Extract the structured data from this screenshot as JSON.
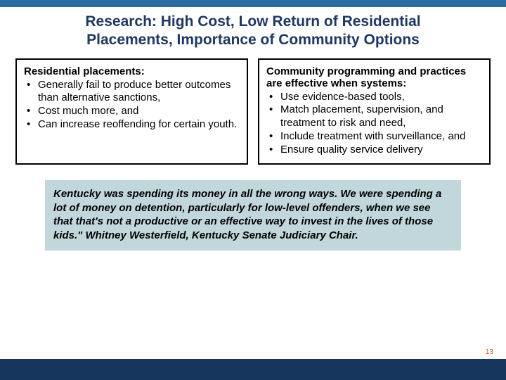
{
  "colors": {
    "top_bar": "#2b6ca3",
    "title_text": "#1f3763",
    "quote_bg": "#c2d7dc",
    "bottom_bar": "#17365d",
    "page_num": "#c05a2c",
    "body_text": "#000000"
  },
  "title": {
    "text": "Research: High Cost, Low Return of Residential Placements, Importance of Community Options",
    "fontsize": 21
  },
  "left_box": {
    "heading": "Residential placements:",
    "fontsize": 15,
    "items": [
      "Generally fail to produce better outcomes than alternative sanctions,",
      "Cost much more, and",
      "Can increase reoffending for certain youth."
    ]
  },
  "right_box": {
    "heading": "Community programming and practices are effective when systems:",
    "fontsize": 15,
    "items": [
      "Use evidence-based tools,",
      "Match placement, supervision, and treatment to risk and need,",
      "Include treatment with surveillance, and",
      "Ensure quality service delivery"
    ]
  },
  "quote": {
    "text": "Kentucky was spending its money in all the wrong ways. We were spending a lot of money on detention, particularly for low-level offenders, when we see that that's not a productive or an effective way to invest in the lives of those kids.\" Whitney Westerfield, Kentucky Senate Judiciary Chair.",
    "fontsize": 15
  },
  "page_number": {
    "value": "13",
    "fontsize": 10
  }
}
